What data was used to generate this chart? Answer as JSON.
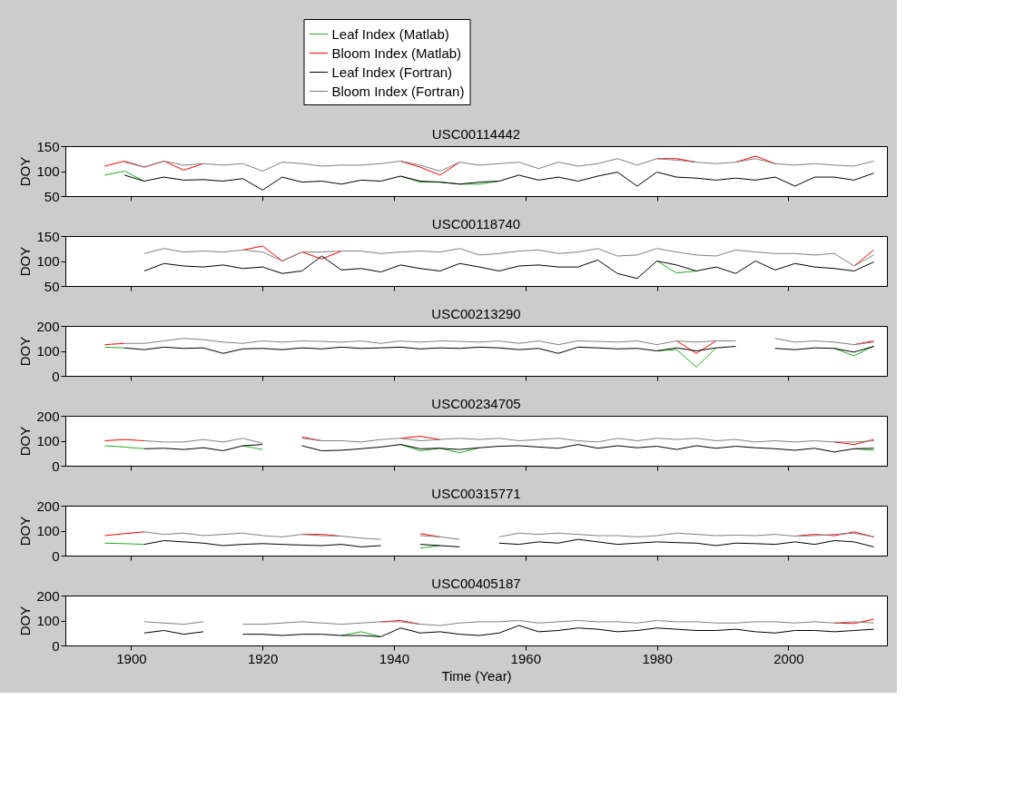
{
  "chart_data": [
    {
      "type": "line",
      "title": "USC00114442",
      "ylabel": "DOY",
      "xlim": [
        1890,
        2015
      ],
      "xticks": [
        1900,
        1920,
        1940,
        1960,
        1980,
        2000
      ],
      "ylim": [
        50,
        150
      ],
      "yticks": [
        50,
        100,
        150
      ],
      "tick_labels": "y",
      "legend": "top",
      "grid": false,
      "x": [
        1896,
        1899,
        1902,
        1905,
        1908,
        1911,
        1914,
        1917,
        1920,
        1923,
        1926,
        1929,
        1932,
        1935,
        1938,
        1941,
        1944,
        1947,
        1950,
        1953,
        1956,
        1959,
        1962,
        1965,
        1968,
        1971,
        1974,
        1977,
        1980,
        1983,
        1986,
        1989,
        1992,
        1995,
        1998,
        2001,
        2004,
        2007,
        2010,
        2013
      ],
      "series": [
        {
          "name": "Leaf Index (Matlab)",
          "color": "#22aa22",
          "values": [
            92,
            100,
            80,
            null,
            null,
            null,
            null,
            null,
            null,
            null,
            null,
            null,
            null,
            null,
            null,
            90,
            78,
            78,
            74,
            74,
            80,
            null,
            null,
            null,
            null,
            null,
            null,
            null,
            null,
            null,
            null,
            null,
            null,
            null,
            null,
            null,
            null,
            null,
            null,
            null
          ]
        },
        {
          "name": "Bloom Index (Matlab)",
          "color": "#ff0000",
          "values": [
            110,
            120,
            108,
            120,
            102,
            115,
            null,
            null,
            null,
            null,
            null,
            null,
            null,
            null,
            null,
            120,
            108,
            92,
            118,
            null,
            null,
            null,
            null,
            null,
            null,
            null,
            null,
            null,
            125,
            125,
            118,
            null,
            118,
            130,
            115,
            null,
            null,
            null,
            null,
            null
          ]
        },
        {
          "name": "Leaf Index (Fortran)",
          "color": "#000000",
          "values": [
            null,
            92,
            80,
            88,
            82,
            83,
            80,
            85,
            62,
            88,
            78,
            80,
            74,
            82,
            80,
            90,
            80,
            78,
            74,
            78,
            80,
            92,
            82,
            88,
            80,
            90,
            98,
            70,
            98,
            88,
            86,
            82,
            86,
            82,
            88,
            70,
            88,
            88,
            82,
            96
          ]
        },
        {
          "name": "Bloom Index (Fortran)",
          "color": "#808080",
          "values": [
            null,
            118,
            108,
            120,
            112,
            115,
            112,
            115,
            100,
            118,
            115,
            110,
            112,
            112,
            115,
            120,
            112,
            100,
            118,
            112,
            115,
            118,
            105,
            118,
            110,
            115,
            125,
            112,
            125,
            122,
            118,
            115,
            118,
            125,
            115,
            112,
            115,
            112,
            110,
            120
          ]
        }
      ]
    },
    {
      "type": "line",
      "title": "USC00118740",
      "ylabel": "DOY",
      "xlim": [
        1890,
        2015
      ],
      "xticks": [
        1900,
        1920,
        1940,
        1960,
        1980,
        2000
      ],
      "ylim": [
        50,
        150
      ],
      "yticks": [
        50,
        100,
        150
      ],
      "tick_labels": "y",
      "grid": false,
      "x": [
        1902,
        1905,
        1908,
        1911,
        1914,
        1917,
        1920,
        1923,
        1926,
        1929,
        1932,
        1935,
        1938,
        1941,
        1944,
        1947,
        1950,
        1953,
        1956,
        1959,
        1962,
        1965,
        1968,
        1971,
        1974,
        1977,
        1980,
        1983,
        1986,
        1989,
        1992,
        1995,
        1998,
        2001,
        2004,
        2007,
        2010,
        2013
      ],
      "series": [
        {
          "color": "#22aa22",
          "values": [
            null,
            null,
            null,
            null,
            null,
            null,
            null,
            null,
            null,
            null,
            null,
            null,
            null,
            null,
            null,
            null,
            null,
            null,
            null,
            null,
            null,
            null,
            null,
            null,
            null,
            null,
            100,
            76,
            80,
            null,
            null,
            null,
            null,
            null,
            null,
            null,
            null,
            null
          ]
        },
        {
          "color": "#ff0000",
          "values": [
            null,
            null,
            null,
            null,
            null,
            122,
            130,
            100,
            118,
            104,
            120,
            null,
            null,
            null,
            null,
            null,
            null,
            null,
            null,
            null,
            null,
            null,
            null,
            null,
            null,
            null,
            null,
            null,
            null,
            null,
            null,
            null,
            null,
            null,
            null,
            null,
            90,
            122
          ]
        },
        {
          "color": "#000000",
          "values": [
            80,
            95,
            90,
            88,
            92,
            85,
            88,
            75,
            80,
            110,
            82,
            85,
            78,
            92,
            85,
            80,
            95,
            88,
            80,
            90,
            92,
            88,
            88,
            102,
            75,
            65,
            100,
            92,
            80,
            88,
            75,
            100,
            82,
            95,
            88,
            85,
            80,
            98
          ]
        },
        {
          "color": "#808080",
          "values": [
            115,
            125,
            118,
            120,
            118,
            122,
            118,
            100,
            118,
            118,
            120,
            120,
            115,
            118,
            120,
            118,
            125,
            112,
            115,
            120,
            122,
            115,
            118,
            125,
            110,
            112,
            125,
            118,
            112,
            110,
            122,
            118,
            115,
            115,
            112,
            115,
            90,
            112
          ]
        }
      ]
    },
    {
      "type": "line",
      "title": "USC00213290",
      "ylabel": "DOY",
      "xlim": [
        1890,
        2015
      ],
      "xticks": [
        1900,
        1920,
        1940,
        1960,
        1980,
        2000
      ],
      "ylim": [
        0,
        200
      ],
      "yticks": [
        0,
        100,
        200
      ],
      "tick_labels": "y",
      "grid": false,
      "x": [
        1896,
        1899,
        1902,
        1905,
        1908,
        1911,
        1914,
        1917,
        1920,
        1923,
        1926,
        1929,
        1932,
        1935,
        1938,
        1941,
        1944,
        1947,
        1950,
        1953,
        1956,
        1959,
        1962,
        1965,
        1968,
        1971,
        1974,
        1977,
        1980,
        1983,
        1986,
        1989,
        1992,
        1995,
        1998,
        2001,
        2004,
        2007,
        2010,
        2013
      ],
      "series": [
        {
          "color": "#22aa22",
          "values": [
            115,
            112,
            null,
            null,
            null,
            null,
            null,
            null,
            null,
            null,
            null,
            null,
            null,
            null,
            null,
            null,
            null,
            null,
            null,
            null,
            null,
            null,
            null,
            null,
            null,
            null,
            null,
            null,
            100,
            105,
            35,
            112,
            null,
            null,
            null,
            null,
            null,
            110,
            80,
            120
          ]
        },
        {
          "color": "#ff0000",
          "values": [
            125,
            130,
            null,
            null,
            null,
            null,
            null,
            null,
            null,
            null,
            null,
            null,
            null,
            null,
            null,
            null,
            null,
            null,
            null,
            null,
            null,
            null,
            null,
            null,
            null,
            null,
            null,
            null,
            null,
            140,
            90,
            140,
            null,
            null,
            null,
            null,
            null,
            null,
            125,
            140
          ]
        },
        {
          "color": "#000000",
          "values": [
            null,
            112,
            105,
            115,
            110,
            112,
            90,
            108,
            110,
            105,
            112,
            108,
            115,
            110,
            112,
            115,
            108,
            112,
            110,
            115,
            112,
            105,
            110,
            90,
            115,
            112,
            108,
            110,
            100,
            112,
            100,
            112,
            118,
            null,
            110,
            105,
            112,
            110,
            95,
            118
          ]
        },
        {
          "color": "#808080",
          "values": [
            null,
            130,
            130,
            140,
            150,
            145,
            135,
            130,
            140,
            135,
            140,
            138,
            135,
            140,
            130,
            140,
            135,
            140,
            138,
            135,
            140,
            130,
            140,
            125,
            140,
            138,
            135,
            140,
            125,
            140,
            135,
            140,
            140,
            null,
            150,
            135,
            140,
            135,
            125,
            135
          ]
        }
      ]
    },
    {
      "type": "line",
      "title": "USC00234705",
      "ylabel": "DOY",
      "xlim": [
        1890,
        2015
      ],
      "xticks": [
        1900,
        1920,
        1940,
        1960,
        1980,
        2000
      ],
      "ylim": [
        0,
        200
      ],
      "yticks": [
        0,
        100,
        200
      ],
      "tick_labels": "y",
      "grid": false,
      "x": [
        1896,
        1899,
        1902,
        1905,
        1908,
        1911,
        1914,
        1917,
        1920,
        1923,
        1926,
        1929,
        1932,
        1935,
        1938,
        1941,
        1944,
        1947,
        1950,
        1953,
        1956,
        1959,
        1962,
        1965,
        1968,
        1971,
        1974,
        1977,
        1980,
        1983,
        1986,
        1989,
        1992,
        1995,
        1998,
        2001,
        2004,
        2007,
        2010,
        2013
      ],
      "series": [
        {
          "color": "#22aa22",
          "values": [
            80,
            75,
            68,
            null,
            null,
            null,
            null,
            80,
            65,
            null,
            null,
            null,
            null,
            null,
            null,
            85,
            60,
            70,
            52,
            72,
            null,
            null,
            null,
            null,
            null,
            null,
            null,
            null,
            null,
            null,
            null,
            null,
            null,
            null,
            null,
            null,
            null,
            null,
            68,
            62
          ]
        },
        {
          "color": "#ff0000",
          "values": [
            100,
            105,
            100,
            null,
            null,
            null,
            null,
            null,
            null,
            null,
            115,
            100,
            null,
            null,
            null,
            110,
            118,
            105,
            null,
            null,
            null,
            null,
            null,
            null,
            null,
            null,
            null,
            null,
            null,
            null,
            null,
            null,
            null,
            null,
            null,
            null,
            null,
            95,
            85,
            105
          ]
        },
        {
          "color": "#000000",
          "values": [
            null,
            null,
            68,
            70,
            65,
            72,
            60,
            80,
            85,
            null,
            80,
            60,
            62,
            68,
            75,
            85,
            68,
            70,
            65,
            72,
            78,
            80,
            75,
            70,
            85,
            70,
            80,
            72,
            78,
            65,
            80,
            70,
            78,
            72,
            68,
            62,
            70,
            55,
            68,
            70
          ]
        },
        {
          "color": "#808080",
          "values": [
            null,
            null,
            100,
            95,
            95,
            105,
            95,
            110,
            90,
            null,
            110,
            100,
            100,
            95,
            105,
            110,
            100,
            105,
            110,
            105,
            110,
            100,
            105,
            110,
            100,
            95,
            110,
            100,
            110,
            105,
            110,
            100,
            105,
            95,
            100,
            95,
            100,
            95,
            95,
            100
          ]
        }
      ]
    },
    {
      "type": "line",
      "title": "USC00315771",
      "ylabel": "DOY",
      "xlim": [
        1890,
        2015
      ],
      "xticks": [
        1900,
        1920,
        1940,
        1960,
        1980,
        2000
      ],
      "ylim": [
        0,
        200
      ],
      "yticks": [
        0,
        100,
        200
      ],
      "tick_labels": "y",
      "grid": false,
      "x": [
        1896,
        1899,
        1902,
        1905,
        1908,
        1911,
        1914,
        1917,
        1920,
        1923,
        1926,
        1929,
        1932,
        1935,
        1938,
        1941,
        1944,
        1947,
        1950,
        1953,
        1956,
        1959,
        1962,
        1965,
        1968,
        1971,
        1974,
        1977,
        1980,
        1983,
        1986,
        1989,
        1992,
        1995,
        1998,
        2001,
        2004,
        2007,
        2010,
        2013
      ],
      "series": [
        {
          "color": "#22aa22",
          "values": [
            50,
            48,
            45,
            null,
            null,
            null,
            null,
            null,
            null,
            null,
            null,
            null,
            null,
            null,
            null,
            null,
            30,
            40,
            null,
            null,
            null,
            null,
            null,
            null,
            null,
            null,
            null,
            null,
            null,
            null,
            null,
            null,
            null,
            null,
            null,
            null,
            null,
            null,
            null,
            null
          ]
        },
        {
          "color": "#ff0000",
          "values": [
            80,
            88,
            95,
            null,
            null,
            null,
            null,
            null,
            null,
            null,
            85,
            85,
            78,
            null,
            null,
            null,
            88,
            75,
            null,
            null,
            null,
            null,
            null,
            null,
            null,
            null,
            null,
            null,
            null,
            null,
            null,
            null,
            null,
            null,
            null,
            78,
            85,
            80,
            95,
            75
          ]
        },
        {
          "color": "#000000",
          "values": [
            null,
            null,
            45,
            60,
            55,
            50,
            40,
            45,
            48,
            45,
            42,
            40,
            45,
            35,
            40,
            null,
            45,
            40,
            35,
            null,
            50,
            45,
            55,
            50,
            65,
            55,
            45,
            50,
            55,
            52,
            50,
            40,
            50,
            48,
            45,
            55,
            45,
            60,
            55,
            35
          ]
        },
        {
          "color": "#808080",
          "values": [
            null,
            null,
            95,
            85,
            90,
            80,
            85,
            90,
            80,
            75,
            85,
            80,
            78,
            70,
            65,
            null,
            80,
            75,
            65,
            null,
            75,
            90,
            85,
            90,
            85,
            80,
            80,
            75,
            80,
            90,
            85,
            80,
            82,
            80,
            85,
            78,
            80,
            85,
            90,
            75
          ]
        }
      ]
    },
    {
      "type": "line",
      "title": "USC00405187",
      "xlabel": "Time (Year)",
      "ylabel": "DOY",
      "xlim": [
        1890,
        2015
      ],
      "xticks": [
        1900,
        1920,
        1940,
        1960,
        1980,
        2000
      ],
      "ylim": [
        0,
        200
      ],
      "yticks": [
        0,
        100,
        200
      ],
      "grid": false,
      "x": [
        1902,
        1905,
        1908,
        1911,
        1914,
        1917,
        1920,
        1923,
        1926,
        1929,
        1932,
        1935,
        1938,
        1941,
        1944,
        1947,
        1950,
        1953,
        1956,
        1959,
        1962,
        1965,
        1968,
        1971,
        1974,
        1977,
        1980,
        1983,
        1986,
        1989,
        1992,
        1995,
        1998,
        2001,
        2004,
        2007,
        2010,
        2013
      ],
      "series": [
        {
          "color": "#22aa22",
          "values": [
            null,
            null,
            null,
            null,
            null,
            null,
            null,
            null,
            null,
            null,
            40,
            55,
            35,
            null,
            null,
            null,
            null,
            null,
            null,
            null,
            null,
            null,
            null,
            null,
            null,
            null,
            null,
            null,
            null,
            null,
            null,
            null,
            null,
            null,
            null,
            null,
            null,
            null
          ]
        },
        {
          "color": "#ff0000",
          "values": [
            null,
            null,
            null,
            null,
            null,
            null,
            null,
            null,
            null,
            null,
            null,
            null,
            95,
            100,
            85,
            null,
            null,
            null,
            null,
            null,
            null,
            null,
            null,
            null,
            null,
            null,
            null,
            null,
            null,
            null,
            null,
            null,
            null,
            null,
            null,
            90,
            88,
            105
          ]
        },
        {
          "color": "#000000",
          "values": [
            50,
            60,
            45,
            55,
            null,
            45,
            45,
            40,
            45,
            45,
            40,
            40,
            35,
            70,
            50,
            55,
            45,
            40,
            50,
            80,
            55,
            60,
            70,
            65,
            55,
            60,
            70,
            65,
            60,
            60,
            65,
            55,
            50,
            60,
            60,
            55,
            60,
            65
          ]
        },
        {
          "color": "#808080",
          "values": [
            95,
            90,
            85,
            95,
            null,
            85,
            85,
            90,
            95,
            90,
            85,
            90,
            95,
            95,
            85,
            80,
            90,
            95,
            95,
            100,
            90,
            95,
            100,
            95,
            95,
            90,
            100,
            95,
            95,
            90,
            90,
            95,
            95,
            90,
            95,
            90,
            95,
            90
          ]
        }
      ]
    }
  ]
}
